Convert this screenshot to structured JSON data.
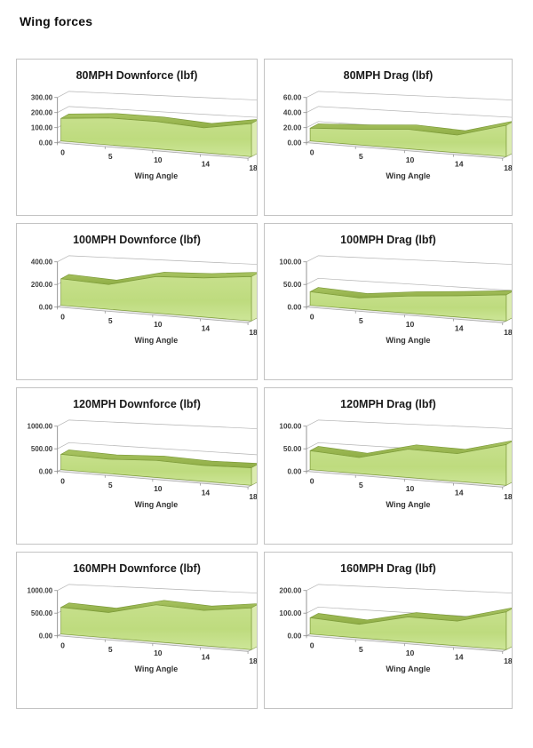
{
  "page_title": "Wing forces",
  "colors": {
    "area_front_top": "#c7e08c",
    "area_front_mid": "#bedb7e",
    "area_front_bottom": "#cde698",
    "area_top_light": "#a9c462",
    "area_top_dark": "#8fad45",
    "area_side": "#dcecb0",
    "area_edge": "#7d9b3a",
    "gridline": "#b3b3b3",
    "axis": "#8c8c8c",
    "floor_fill": "#ececec",
    "floor_edge": "#a8a8a8",
    "cell_border": "#c3c3c3"
  },
  "chart_data": [
    {
      "type": "area",
      "title": "80MPH Downforce (lbf)",
      "xlabel": "Wing Angle",
      "x": [
        0,
        5,
        10,
        14,
        18
      ],
      "values": [
        150,
        172,
        168,
        148,
        190
      ],
      "yticks": [
        "300.00",
        "200.00",
        "100.00",
        "0.00"
      ],
      "ylim": [
        0,
        300
      ],
      "grid": true,
      "legend": false
    },
    {
      "type": "area",
      "title": "80MPH Drag (lbf)",
      "xlabel": "Wing Angle",
      "x": [
        0,
        5,
        10,
        14,
        18
      ],
      "values": [
        17,
        20,
        24,
        21,
        36
      ],
      "yticks": [
        "60.00",
        "40.00",
        "20.00",
        "0.00"
      ],
      "ylim": [
        0,
        60
      ],
      "grid": true,
      "legend": false
    },
    {
      "type": "area",
      "title": "100MPH Downforce (lbf)",
      "xlabel": "Wing Angle",
      "x": [
        0,
        5,
        10,
        14,
        18
      ],
      "values": [
        235,
        210,
        300,
        310,
        340
      ],
      "yticks": [
        "400.00",
        "200.00",
        "0.00"
      ],
      "ylim": [
        0,
        400
      ],
      "grid": true,
      "legend": false
    },
    {
      "type": "area",
      "title": "100MPH Drag (lbf)",
      "xlabel": "Wing Angle",
      "x": [
        0,
        5,
        10,
        14,
        18
      ],
      "values": [
        30,
        24,
        35,
        42,
        50
      ],
      "yticks": [
        "100.00",
        "50.00",
        "0.00"
      ],
      "ylim": [
        0,
        100
      ],
      "grid": true,
      "legend": false
    },
    {
      "type": "area",
      "title": "120MPH Downforce (lbf)",
      "xlabel": "Wing Angle",
      "x": [
        0,
        5,
        10,
        14,
        18
      ],
      "values": [
        340,
        305,
        350,
        315,
        335
      ],
      "yticks": [
        "1000.00",
        "500.00",
        "0.00"
      ],
      "ylim": [
        0,
        1000
      ],
      "grid": true,
      "legend": false
    },
    {
      "type": "area",
      "title": "120MPH Drag (lbf)",
      "xlabel": "Wing Angle",
      "x": [
        0,
        5,
        10,
        14,
        18
      ],
      "values": [
        42,
        34,
        58,
        55,
        78
      ],
      "yticks": [
        "100.00",
        "50.00",
        "0.00"
      ],
      "ylim": [
        0,
        100
      ],
      "grid": true,
      "legend": false
    },
    {
      "type": "area",
      "title": "160MPH Downforce (lbf)",
      "xlabel": "Wing Angle",
      "x": [
        0,
        5,
        10,
        14,
        18
      ],
      "values": [
        590,
        540,
        760,
        700,
        800
      ],
      "yticks": [
        "1000.00",
        "500.00",
        "0.00"
      ],
      "ylim": [
        0,
        1000
      ],
      "grid": true,
      "legend": false
    },
    {
      "type": "area",
      "title": "160MPH Drag (lbf)",
      "xlabel": "Wing Angle",
      "x": [
        0,
        5,
        10,
        14,
        18
      ],
      "values": [
        72,
        58,
        102,
        98,
        145
      ],
      "yticks": [
        "200.00",
        "100.00",
        "0.00"
      ],
      "ylim": [
        0,
        200
      ],
      "grid": true,
      "legend": false
    }
  ]
}
